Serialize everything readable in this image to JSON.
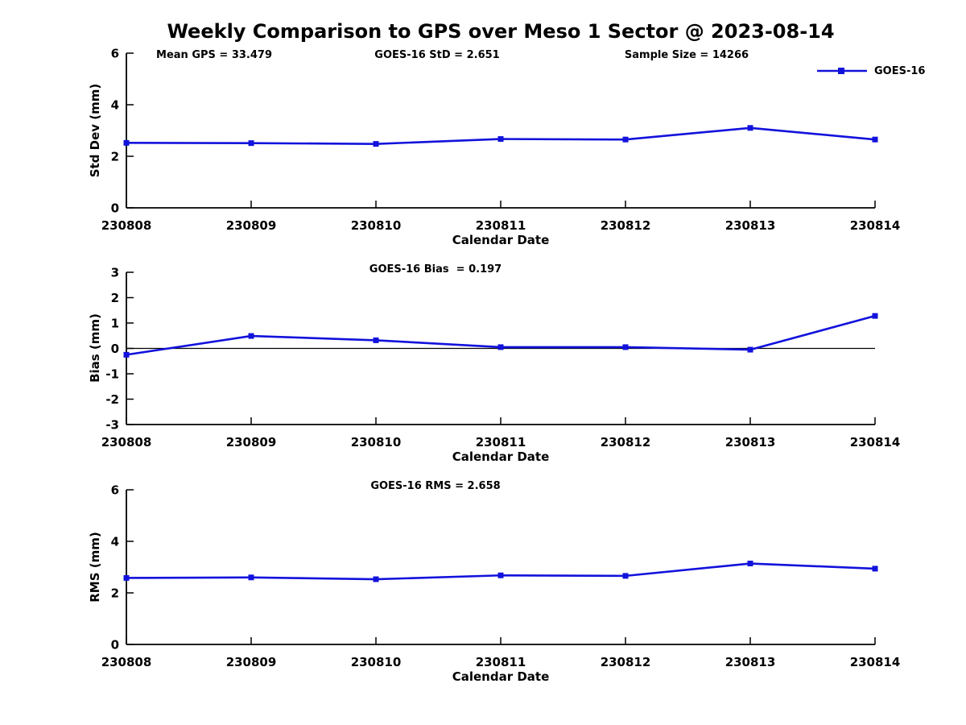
{
  "title": "Weekly Comparison to GPS over Meso 1 Sector @ 2023-08-14",
  "header_annotations": [
    "Mean GPS = 33.479",
    "GOES-16 StD = 2.651",
    "Sample Size = 14266"
  ],
  "legend": {
    "label": "GOES-16"
  },
  "colors": {
    "series": "#1212DC",
    "axis": "#000000",
    "text": "#000000",
    "zero_line": "#000000"
  },
  "chart_data": [
    {
      "type": "line",
      "name": "std-dev",
      "ylabel": "Std Dev (mm)",
      "xlabel": "Calendar Date",
      "categories": [
        "230808",
        "230809",
        "230810",
        "230811",
        "230812",
        "230813",
        "230814"
      ],
      "ylim": [
        0,
        6
      ],
      "yticks": [
        0,
        2,
        4,
        6
      ],
      "zero_line": false,
      "grid": false,
      "legend_position": "top-right",
      "series": [
        {
          "name": "GOES-16",
          "marker": "square",
          "values": [
            2.52,
            2.51,
            2.48,
            2.67,
            2.65,
            3.1,
            2.65
          ]
        }
      ]
    },
    {
      "type": "line",
      "name": "bias",
      "subtitle": "GOES-16 Bias  = 0.197",
      "ylabel": "Bias (mm)",
      "xlabel": "Calendar Date",
      "categories": [
        "230808",
        "230809",
        "230810",
        "230811",
        "230812",
        "230813",
        "230814"
      ],
      "ylim": [
        -3,
        3
      ],
      "yticks": [
        3,
        2,
        1,
        0,
        -1,
        -2,
        -3
      ],
      "zero_line": true,
      "grid": false,
      "series": [
        {
          "name": "GOES-16",
          "marker": "square",
          "values": [
            -0.25,
            0.49,
            0.32,
            0.05,
            0.05,
            -0.05,
            1.28
          ]
        }
      ]
    },
    {
      "type": "line",
      "name": "rms",
      "subtitle": "GOES-16 RMS = 2.658",
      "ylabel": "RMS (mm)",
      "xlabel": "Calendar Date",
      "categories": [
        "230808",
        "230809",
        "230810",
        "230811",
        "230812",
        "230813",
        "230814"
      ],
      "ylim": [
        0,
        6
      ],
      "yticks": [
        0,
        2,
        4,
        6
      ],
      "zero_line": false,
      "grid": false,
      "series": [
        {
          "name": "GOES-16",
          "marker": "square",
          "values": [
            2.58,
            2.6,
            2.53,
            2.68,
            2.66,
            3.14,
            2.94
          ]
        }
      ]
    }
  ]
}
